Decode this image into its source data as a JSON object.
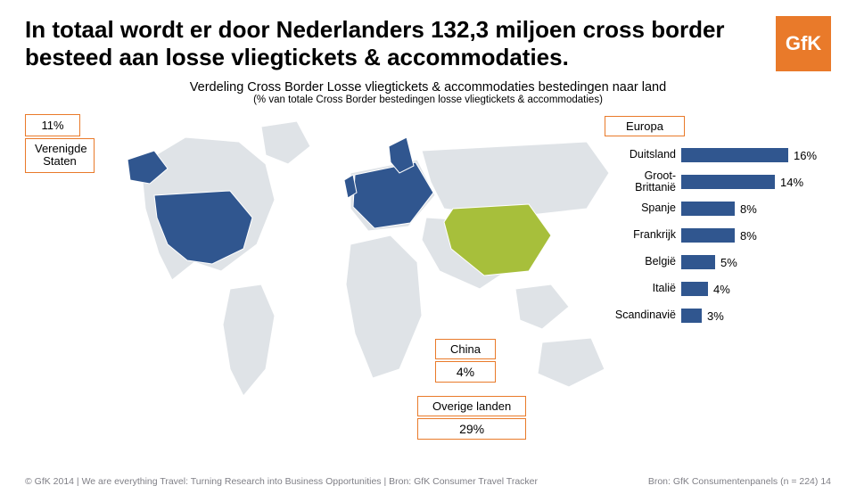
{
  "title": "In totaal wordt er door Nederlanders 132,3 miljoen cross border besteed aan losse vliegtickets & accommodaties.",
  "subtitle": "Verdeling Cross Border Losse vliegtickets & accommodaties bestedingen naar land",
  "subnote": "(% van totale Cross Border bestedingen losse vliegtickets & accommodaties)",
  "logo_text": "GfK",
  "callout_us": {
    "percent": "11%",
    "label_line1": "Verenigde",
    "label_line2": "Staten"
  },
  "bars": {
    "header": "Europa",
    "max_pct": 20,
    "rows": [
      {
        "label": "Duitsland",
        "value": 16,
        "text": "16%",
        "color": "#30568f"
      },
      {
        "label": "Groot-\nBrittanië",
        "value": 14,
        "text": "14%",
        "color": "#30568f"
      },
      {
        "label": "Spanje",
        "value": 8,
        "text": "8%",
        "color": "#30568f"
      },
      {
        "label": "Frankrijk",
        "value": 8,
        "text": "8%",
        "color": "#30568f"
      },
      {
        "label": "België",
        "value": 5,
        "text": "5%",
        "color": "#30568f"
      },
      {
        "label": "Italië",
        "value": 4,
        "text": "4%",
        "color": "#30568f"
      },
      {
        "label": "Scandinavië",
        "value": 3,
        "text": "3%",
        "color": "#30568f"
      }
    ]
  },
  "china": {
    "label": "China",
    "percent": "4%"
  },
  "other": {
    "label": "Overige landen",
    "percent": "29%"
  },
  "map_colors": {
    "base": "#dfe3e7",
    "highlight": "#30568f",
    "china": "#a7bf3b",
    "stroke": "#ffffff"
  },
  "footer_left": "© GfK 2014 | We are everything Travel: Turning Research into Business Opportunities  |  Bron: GfK Consumer Travel Tracker",
  "footer_right": "Bron: GfK Consumentenpanels (n = 224)   14",
  "colors": {
    "accent": "#e97a2a",
    "logo_bg": "#e97a2a",
    "text": "#000000"
  }
}
